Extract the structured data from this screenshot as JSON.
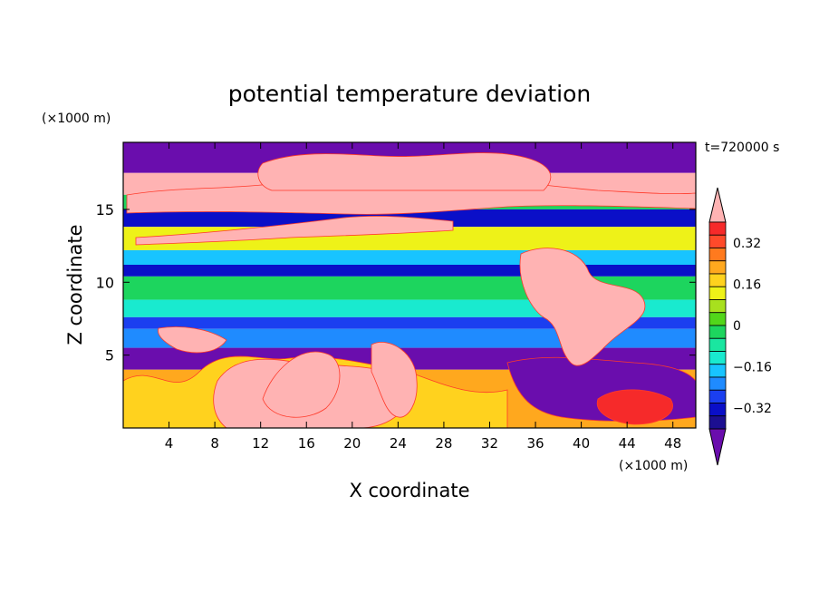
{
  "chart_data": {
    "type": "heatmap",
    "title": "potential temperature deviation",
    "xlabel": "X coordinate",
    "ylabel": "Z coordinate",
    "x_unit": "(×1000 m)",
    "y_unit": "(×1000 m)",
    "time_label": "t=720000 s",
    "xlim": [
      0,
      50
    ],
    "ylim": [
      0,
      19.6
    ],
    "x_ticks": [
      4,
      8,
      12,
      16,
      20,
      24,
      28,
      32,
      36,
      40,
      44,
      48
    ],
    "y_ticks": [
      5,
      10,
      15
    ],
    "colorbar": {
      "levels": [
        -0.4,
        -0.36,
        -0.32,
        -0.28,
        -0.24,
        -0.2,
        -0.16,
        -0.12,
        -0.08,
        -0.04,
        0,
        0.04,
        0.08,
        0.12,
        0.16,
        0.2,
        0.24,
        0.28,
        0.32,
        0.36,
        0.4
      ],
      "tick_values": [
        0.32,
        0.16,
        0,
        -0.16,
        -0.32
      ],
      "tick_labels": [
        "0.32",
        "0.16",
        "0",
        "−0.16",
        "−0.32"
      ],
      "colors_low_to_high": [
        "#6a0dad",
        "#1c0f91",
        "#0a0fc8",
        "#1b3ff0",
        "#1f8bff",
        "#18c4ff",
        "#19eacf",
        "#1ae6a0",
        "#1dd55e",
        "#52d61a",
        "#a8e01e",
        "#eef218",
        "#ffd21e",
        "#ffa81e",
        "#ff7a1e",
        "#ff4a2a",
        "#f62a2a",
        "#ffb3b3"
      ],
      "extend": "both"
    },
    "field_description_bands": [
      {
        "z": [
          17.5,
          19.6
        ],
        "value": -0.4
      },
      {
        "z": [
          16.0,
          17.5
        ],
        "value": 0.4
      },
      {
        "z": [
          15.0,
          16.0
        ],
        "value": -0.1
      },
      {
        "z": [
          13.8,
          15.0
        ],
        "value": -0.36
      },
      {
        "z": [
          12.2,
          13.8
        ],
        "value": 0.02
      },
      {
        "z": [
          11.2,
          12.2
        ],
        "value": -0.2
      },
      {
        "z": [
          10.4,
          11.2
        ],
        "value": -0.34
      },
      {
        "z": [
          8.8,
          10.4
        ],
        "value": -0.1
      },
      {
        "z": [
          7.6,
          8.8
        ],
        "value": -0.16
      },
      {
        "z": [
          6.8,
          7.6
        ],
        "value": -0.3
      },
      {
        "z": [
          5.5,
          6.8
        ],
        "value": -0.24
      },
      {
        "z": [
          4.0,
          5.5
        ],
        "value": -0.4
      },
      {
        "z": [
          0.0,
          4.0
        ],
        "value": 0.1
      }
    ]
  }
}
